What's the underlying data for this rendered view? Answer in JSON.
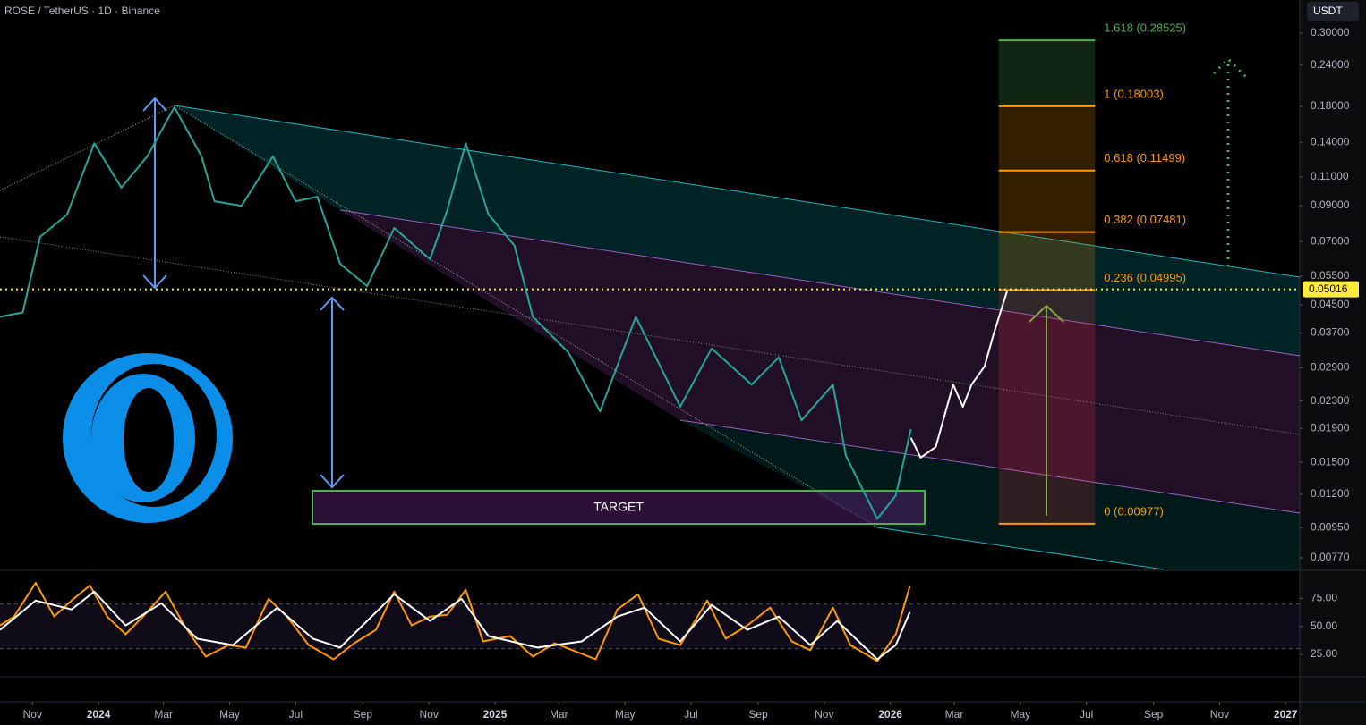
{
  "header": {
    "symbol": "ROSE / TetherUS · 1D · Binance",
    "currency": "USDT"
  },
  "chart_data": [
    {
      "type": "line",
      "log_scale": true,
      "xlim": [
        "2023-10-02",
        "2027-01-14"
      ],
      "ylim": [
        0.0071,
        0.378
      ],
      "yticks": [
        {
          "value": 0.3,
          "label": "0.30000"
        },
        {
          "value": 0.24,
          "label": "0.24000"
        },
        {
          "value": 0.18,
          "label": "0.18000"
        },
        {
          "value": 0.14,
          "label": "0.14000"
        },
        {
          "value": 0.11,
          "label": "0.11000"
        },
        {
          "value": 0.09,
          "label": "0.09000"
        },
        {
          "value": 0.07,
          "label": "0.07000"
        },
        {
          "value": 0.055,
          "label": "0.05500"
        },
        {
          "value": 0.045,
          "label": "0.04500"
        },
        {
          "value": 0.037,
          "label": "0.03700"
        },
        {
          "value": 0.029,
          "label": "0.02900"
        },
        {
          "value": 0.023,
          "label": "0.02300"
        },
        {
          "value": 0.019,
          "label": "0.01900"
        },
        {
          "value": 0.015,
          "label": "0.01500"
        },
        {
          "value": 0.012,
          "label": "0.01200"
        },
        {
          "value": 0.0095,
          "label": "0.00950"
        },
        {
          "value": 0.0077,
          "label": "0.00770"
        }
      ],
      "xticks": [
        {
          "value": "2023-11-01",
          "label": "Nov"
        },
        {
          "value": "2024-01-01",
          "label": "2024"
        },
        {
          "value": "2024-03-01",
          "label": "Mar"
        },
        {
          "value": "2024-05-01",
          "label": "May"
        },
        {
          "value": "2024-07-01",
          "label": "Jul"
        },
        {
          "value": "2024-09-01",
          "label": "Sep"
        },
        {
          "value": "2024-11-01",
          "label": "Nov"
        },
        {
          "value": "2025-01-01",
          "label": "2025"
        },
        {
          "value": "2025-03-01",
          "label": "Mar"
        },
        {
          "value": "2025-05-01",
          "label": "May"
        },
        {
          "value": "2025-07-01",
          "label": "Jul"
        },
        {
          "value": "2025-09-01",
          "label": "Sep"
        },
        {
          "value": "2025-11-01",
          "label": "Nov"
        },
        {
          "value": "2026-01-01",
          "label": "2026"
        },
        {
          "value": "2026-03-01",
          "label": "Mar"
        },
        {
          "value": "2026-05-01",
          "label": "May"
        },
        {
          "value": "2026-07-01",
          "label": "Jul"
        },
        {
          "value": "2026-09-01",
          "label": "Sep"
        },
        {
          "value": "2026-11-01",
          "label": "Nov"
        },
        {
          "value": "2027-01-01",
          "label": "2027"
        }
      ],
      "series": [
        {
          "color": "#26a69a",
          "x": [
            "2023-10-02",
            "2023-10-23",
            "2023-11-08",
            "2023-12-03",
            "2023-12-28",
            "2024-01-22",
            "2024-02-15",
            "2024-03-11",
            "2024-04-05",
            "2024-04-17",
            "2024-05-12",
            "2024-06-10",
            "2024-07-01",
            "2024-07-21",
            "2024-08-11",
            "2024-09-05",
            "2024-09-30",
            "2024-11-02",
            "2024-11-18",
            "2024-12-05",
            "2024-12-26",
            "2025-01-19",
            "2025-02-05",
            "2025-03-10",
            "2025-04-08",
            "2025-05-11",
            "2025-06-21",
            "2025-07-20",
            "2025-08-26",
            "2025-09-20",
            "2025-10-11",
            "2025-11-09",
            "2025-11-21",
            "2025-12-20",
            "2026-01-06",
            "2026-01-20"
          ],
          "values": [
            0.0414,
            0.0427,
            0.0724,
            0.0846,
            0.139,
            0.102,
            0.127,
            0.179,
            0.127,
            0.0928,
            0.0899,
            0.127,
            0.0928,
            0.0957,
            0.06,
            0.0513,
            0.077,
            0.0619,
            0.0873,
            0.139,
            0.0846,
            0.068,
            0.0414,
            0.0322,
            0.0214,
            0.0414,
            0.0221,
            0.0332,
            0.0258,
            0.0312,
            0.0201,
            0.0258,
            0.0157,
            0.0101,
            0.0119,
            0.0189
          ]
        },
        {
          "color": "#ffffff",
          "x": [
            "2026-01-20",
            "2026-01-29",
            "2026-02-12",
            "2026-02-28",
            "2026-03-09",
            "2026-03-17",
            "2026-03-29",
            "2026-04-06",
            "2026-04-19"
          ],
          "values": [
            0.0178,
            0.0155,
            0.0167,
            0.0258,
            0.0221,
            0.0258,
            0.0293,
            0.0364,
            0.0498
          ]
        }
      ],
      "price_line": {
        "value": 0.05016,
        "label": "0.05016",
        "color": "#ffeb3b"
      },
      "fib": {
        "x": [
          "2026-04-11",
          "2026-07-09"
        ],
        "levels": [
          {
            "value": 0.28525,
            "label": "1.618 (0.28525)",
            "color": "#4caf50",
            "fill": "rgba(76,175,80,0.22)"
          },
          {
            "value": 0.18003,
            "label": "1 (0.18003)",
            "color": "#ff9800",
            "fill": "rgba(255,152,0,0.2)"
          },
          {
            "value": 0.11499,
            "label": "0.618 (0.11499)",
            "color": "#ff9800",
            "fill": "rgba(255,152,0,0.2)"
          },
          {
            "value": 0.07481,
            "label": "0.382 (0.07481)",
            "color": "#ff9800",
            "fill": "rgba(255,152,0,0.2)"
          },
          {
            "value": 0.04995,
            "label": "0.236 (0.04995)",
            "color": "#ff9800",
            "fill": "rgba(242,54,69,0.2)"
          },
          {
            "value": 0.00977,
            "label": "0 (0.00977)",
            "color": "#ff9800"
          }
        ]
      },
      "annotation": "TARGET"
    },
    {
      "type": "line",
      "ylim": [
        5,
        100
      ],
      "yticks": [
        {
          "value": 75,
          "label": "75.00"
        },
        {
          "value": 50,
          "label": "50.00"
        },
        {
          "value": 25,
          "label": "25.00"
        }
      ],
      "band": [
        30,
        70
      ],
      "series": [
        {
          "color": "#ff9800",
          "x": [
            "2023-10-02",
            "2023-10-15",
            "2023-11-04",
            "2023-11-21",
            "2023-12-07",
            "2023-12-24",
            "2024-01-09",
            "2024-01-26",
            "2024-02-11",
            "2024-03-03",
            "2024-03-20",
            "2024-04-09",
            "2024-04-30",
            "2024-05-16",
            "2024-06-06",
            "2024-06-23",
            "2024-07-13",
            "2024-08-05",
            "2024-08-24",
            "2024-09-13",
            "2024-09-30",
            "2024-10-16",
            "2024-11-02",
            "2024-11-18",
            "2024-12-05",
            "2024-12-21",
            "2025-01-15",
            "2025-02-05",
            "2025-02-25",
            "2025-03-18",
            "2025-04-04",
            "2025-04-24",
            "2025-05-13",
            "2025-06-01",
            "2025-06-21",
            "2025-07-16",
            "2025-08-02",
            "2025-08-22",
            "2025-09-12",
            "2025-10-02",
            "2025-10-19",
            "2025-11-09",
            "2025-11-25",
            "2025-12-20",
            "2026-01-06",
            "2026-01-19"
          ],
          "values": [
            50.8,
            58.7,
            88.9,
            58.7,
            73.0,
            86.5,
            58.7,
            42.9,
            58.7,
            81.0,
            50.8,
            23.0,
            33.3,
            31.0,
            74.6,
            58.7,
            33.3,
            20.6,
            34.9,
            46.8,
            81.0,
            50.8,
            58.7,
            60.3,
            82.5,
            36.5,
            41.3,
            23.0,
            34.9,
            27.0,
            20.6,
            65.1,
            78.6,
            38.9,
            33.3,
            73.0,
            38.9,
            50.8,
            66.7,
            36.5,
            28.6,
            66.7,
            33.3,
            19.0,
            42.9,
            85.7
          ]
        },
        {
          "color": "#ffffff",
          "x": [
            "2023-10-02",
            "2023-11-04",
            "2023-12-07",
            "2023-12-28",
            "2024-01-26",
            "2024-02-28",
            "2024-04-01",
            "2024-05-04",
            "2024-06-14",
            "2024-07-17",
            "2024-08-11",
            "2024-09-30",
            "2024-11-02",
            "2024-12-01",
            "2024-12-26",
            "2025-02-09",
            "2025-03-22",
            "2025-04-24",
            "2025-05-19",
            "2025-06-21",
            "2025-07-20",
            "2025-08-22",
            "2025-09-20",
            "2025-10-19",
            "2025-11-13",
            "2025-12-20",
            "2026-01-06",
            "2026-01-19"
          ],
          "values": [
            46.8,
            73.0,
            65.1,
            81.0,
            50.8,
            70.6,
            38.9,
            33.3,
            66.7,
            38.9,
            31.0,
            78.6,
            54.8,
            74.6,
            41.3,
            31.0,
            36.5,
            58.7,
            66.7,
            36.5,
            69.0,
            46.8,
            58.7,
            33.3,
            54.8,
            20.6,
            33.3,
            62.7
          ]
        }
      ]
    }
  ]
}
